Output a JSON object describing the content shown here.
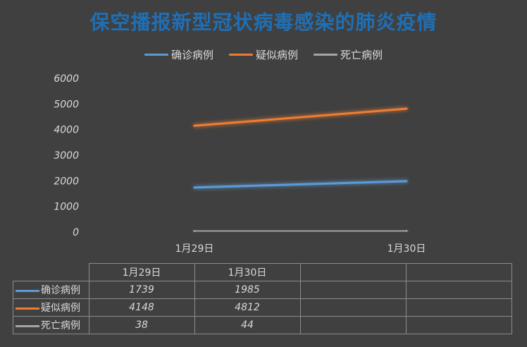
{
  "chart_data": {
    "type": "line",
    "title": "保空播报新型冠状病毒感染的肺炎疫情",
    "categories": [
      "1月29日",
      "1月30日"
    ],
    "series": [
      {
        "name": "确诊病例",
        "values": [
          1739,
          1985
        ],
        "color": "#5b9bd5"
      },
      {
        "name": "疑似病例",
        "values": [
          4148,
          4812
        ],
        "color": "#ed7d31"
      },
      {
        "name": "死亡病例",
        "values": [
          38,
          44
        ],
        "color": "#a5a5a5"
      }
    ],
    "ylim": [
      0,
      6000
    ],
    "yticks": [
      "0",
      "1000",
      "2000",
      "3000",
      "4000",
      "5000",
      "6000"
    ],
    "grid": false,
    "legend": "top",
    "data_table": true
  },
  "colors": {
    "background": "#404040",
    "title": "#1f6fb5",
    "text": "#d9d9d9",
    "table_border": "#8c8c8c"
  }
}
